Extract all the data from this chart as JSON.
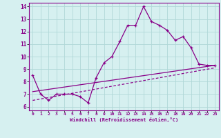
{
  "xlabel": "Windchill (Refroidissement éolien,°C)",
  "background_color": "#d6f0f0",
  "grid_color": "#b0d8d8",
  "line_color": "#880088",
  "xlim": [
    -0.5,
    23.5
  ],
  "ylim": [
    5.7,
    14.3
  ],
  "yticks": [
    6,
    7,
    8,
    9,
    10,
    11,
    12,
    13,
    14
  ],
  "xticks": [
    0,
    1,
    2,
    3,
    4,
    5,
    6,
    7,
    8,
    9,
    10,
    11,
    12,
    13,
    14,
    15,
    16,
    17,
    18,
    19,
    20,
    21,
    22,
    23
  ],
  "main_x": [
    0,
    1,
    2,
    3,
    4,
    5,
    6,
    7,
    8,
    9,
    10,
    11,
    12,
    13,
    14,
    15,
    16,
    17,
    18,
    19,
    20,
    21,
    22,
    23
  ],
  "main_y": [
    8.5,
    7.0,
    6.5,
    7.0,
    7.0,
    7.0,
    6.8,
    6.3,
    8.3,
    9.5,
    10.0,
    11.2,
    12.5,
    12.5,
    14.0,
    12.8,
    12.5,
    12.1,
    11.3,
    11.6,
    10.7,
    9.4,
    9.3,
    9.3
  ],
  "trend1_x": [
    0,
    23
  ],
  "trend1_y": [
    7.2,
    9.3
  ],
  "trend2_x": [
    0,
    23
  ],
  "trend2_y": [
    6.5,
    9.1
  ]
}
